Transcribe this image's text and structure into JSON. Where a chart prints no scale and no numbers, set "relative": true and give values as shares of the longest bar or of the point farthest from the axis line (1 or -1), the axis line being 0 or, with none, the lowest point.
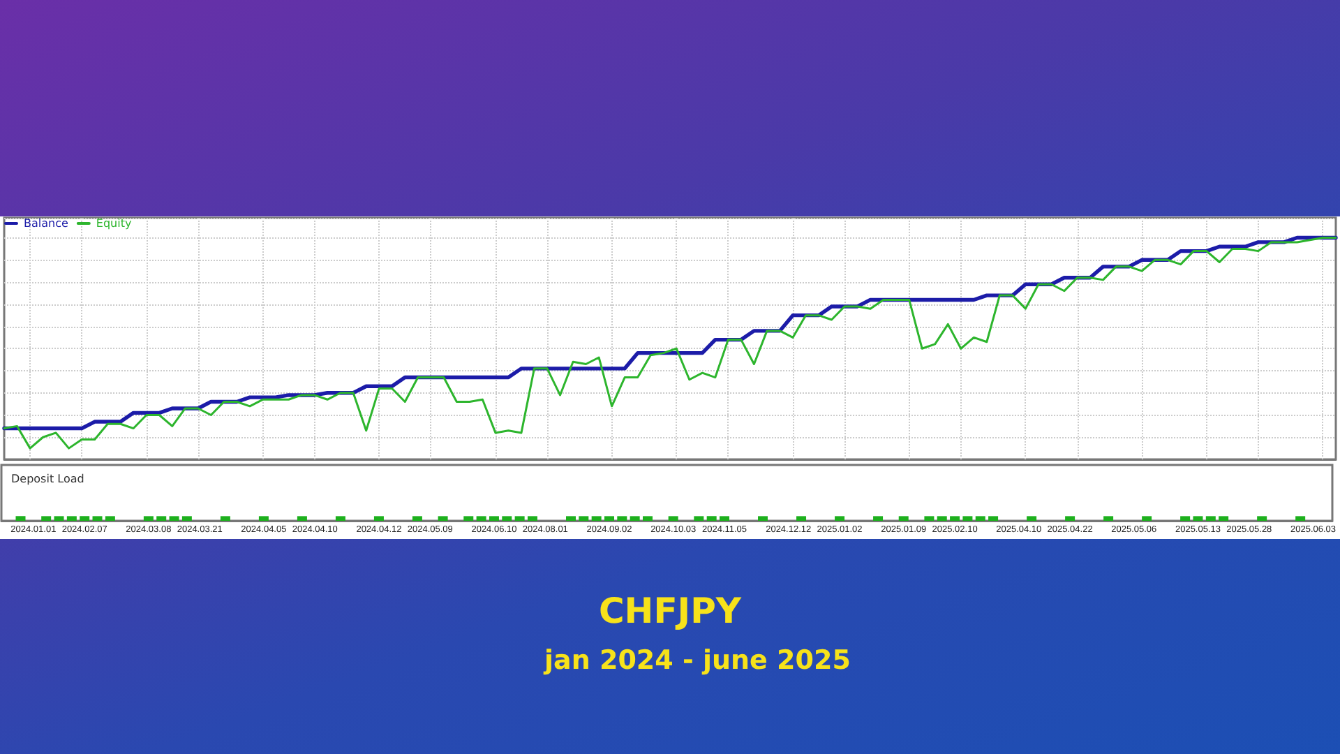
{
  "chart_data": [
    {
      "type": "line",
      "relative": true,
      "grid": true,
      "legend": "top left",
      "marker": "none",
      "categories": [
        null,
        null,
        null,
        null,
        null,
        null,
        null,
        null,
        null,
        null,
        null,
        null,
        null,
        null,
        null,
        null,
        null,
        null,
        null,
        null,
        null,
        null,
        null,
        null,
        null,
        null,
        null,
        null,
        null,
        null,
        null,
        null,
        null,
        null,
        null,
        null,
        null,
        null,
        null,
        null,
        null,
        null,
        null,
        null,
        null,
        null,
        null,
        null,
        null,
        null,
        null,
        null,
        null,
        null,
        null,
        null,
        null,
        null,
        null,
        null,
        null,
        null,
        null,
        null,
        null,
        null,
        null,
        null,
        null,
        null,
        null,
        null,
        null,
        null,
        null,
        null,
        null,
        null,
        null,
        null,
        null,
        null,
        null,
        null,
        null,
        null,
        null,
        null,
        null,
        null,
        null,
        null,
        null,
        null,
        null,
        null,
        null,
        null,
        null,
        null,
        null,
        null,
        null,
        null
      ],
      "series": [
        {
          "name": "Balance",
          "color": "#1c1ca8",
          "values": [
            0.14,
            0.14,
            0.14,
            0.14,
            0.14,
            0.14,
            0.14,
            0.17,
            0.17,
            0.17,
            0.21,
            0.21,
            0.21,
            0.23,
            0.23,
            0.23,
            0.26,
            0.26,
            0.26,
            0.28,
            0.28,
            0.28,
            0.29,
            0.29,
            0.29,
            0.3,
            0.3,
            0.3,
            0.33,
            0.33,
            0.33,
            0.37,
            0.37,
            0.37,
            0.37,
            0.37,
            0.37,
            0.37,
            0.37,
            0.37,
            0.41,
            0.41,
            0.41,
            0.41,
            0.41,
            0.41,
            0.41,
            0.41,
            0.41,
            0.48,
            0.48,
            0.48,
            0.48,
            0.48,
            0.48,
            0.54,
            0.54,
            0.54,
            0.58,
            0.58,
            0.58,
            0.65,
            0.65,
            0.65,
            0.69,
            0.69,
            0.69,
            0.72,
            0.72,
            0.72,
            0.72,
            0.72,
            0.72,
            0.72,
            0.72,
            0.72,
            0.74,
            0.74,
            0.74,
            0.79,
            0.79,
            0.79,
            0.82,
            0.82,
            0.82,
            0.87,
            0.87,
            0.87,
            0.9,
            0.9,
            0.9,
            0.94,
            0.94,
            0.94,
            0.96,
            0.96,
            0.96,
            0.98,
            0.98,
            0.98,
            1,
            1,
            1,
            1
          ]
        },
        {
          "name": "Equity",
          "color": "#2db52d",
          "values": [
            0.14,
            0.15,
            0.05,
            0.1,
            0.12,
            0.05,
            0.09,
            0.09,
            0.16,
            0.16,
            0.14,
            0.2,
            0.2,
            0.15,
            0.23,
            0.23,
            0.2,
            0.26,
            0.26,
            0.24,
            0.27,
            0.27,
            0.27,
            0.29,
            0.29,
            0.27,
            0.3,
            0.3,
            0.13,
            0.32,
            0.32,
            0.26,
            0.37,
            0.37,
            0.37,
            0.26,
            0.26,
            0.27,
            0.12,
            0.13,
            0.12,
            0.41,
            0.41,
            0.29,
            0.44,
            0.43,
            0.46,
            0.24,
            0.37,
            0.37,
            0.47,
            0.48,
            0.5,
            0.36,
            0.39,
            0.37,
            0.54,
            0.54,
            0.43,
            0.58,
            0.58,
            0.55,
            0.65,
            0.65,
            0.63,
            0.69,
            0.69,
            0.68,
            0.72,
            0.72,
            0.72,
            0.5,
            0.52,
            0.61,
            0.5,
            0.55,
            0.53,
            0.74,
            0.74,
            0.68,
            0.79,
            0.79,
            0.76,
            0.82,
            0.82,
            0.81,
            0.87,
            0.87,
            0.85,
            0.9,
            0.9,
            0.88,
            0.94,
            0.94,
            0.89,
            0.95,
            0.95,
            0.94,
            0.98,
            0.98,
            0.98,
            0.99,
            1,
            1
          ]
        }
      ]
    },
    {
      "type": "bar",
      "title": "Deposit Load",
      "relative": true,
      "color": "#1db01d",
      "categories": [
        null,
        null,
        "2024.01.01",
        null,
        null,
        null,
        "2024.02.07",
        null,
        null,
        null,
        null,
        "2024.03.08",
        null,
        null,
        null,
        "2024.03.21",
        null,
        null,
        null,
        null,
        "2024.04.05",
        null,
        null,
        null,
        "2024.04.10",
        null,
        null,
        null,
        null,
        "2024.04.12",
        null,
        null,
        null,
        "2024.05.09",
        null,
        null,
        null,
        null,
        "2024.06.10",
        null,
        null,
        null,
        "2024.08.01",
        null,
        null,
        null,
        null,
        "2024.09.02",
        null,
        null,
        null,
        null,
        "2024.10.03",
        null,
        null,
        null,
        "2024.11.05",
        null,
        null,
        null,
        null,
        "2024.12.12",
        null,
        null,
        null,
        "2025.01.02",
        null,
        null,
        null,
        null,
        "2025.01.09",
        null,
        null,
        null,
        "2025.02.10",
        null,
        null,
        null,
        null,
        "2025.04.10",
        null,
        null,
        null,
        "2025.04.22",
        null,
        null,
        null,
        null,
        "2025.05.06",
        null,
        null,
        null,
        null,
        "2025.05.13",
        null,
        null,
        null,
        "2025.05.28",
        null,
        null,
        null,
        null,
        "2025.06.03",
        null
      ],
      "values": [
        null,
        1,
        null,
        1,
        1,
        1,
        1,
        1,
        1,
        null,
        null,
        1,
        1,
        1,
        1,
        null,
        null,
        1,
        null,
        null,
        1,
        null,
        null,
        1,
        null,
        null,
        1,
        null,
        null,
        1,
        null,
        null,
        1,
        null,
        1,
        null,
        1,
        1,
        1,
        1,
        1,
        1,
        null,
        null,
        1,
        1,
        1,
        1,
        1,
        1,
        1,
        null,
        1,
        null,
        1,
        1,
        1,
        null,
        null,
        1,
        null,
        null,
        1,
        null,
        null,
        1,
        null,
        null,
        1,
        null,
        1,
        null,
        1,
        1,
        1,
        1,
        1,
        1,
        null,
        null,
        1,
        null,
        null,
        1,
        null,
        null,
        1,
        null,
        null,
        1,
        null,
        null,
        1,
        1,
        1,
        1,
        null,
        null,
        1,
        null,
        null,
        1,
        null,
        null
      ]
    },
    {
      "type": "other",
      "title": "CHFJPY",
      "subtitle": "jan 2024 - june 2025"
    }
  ]
}
